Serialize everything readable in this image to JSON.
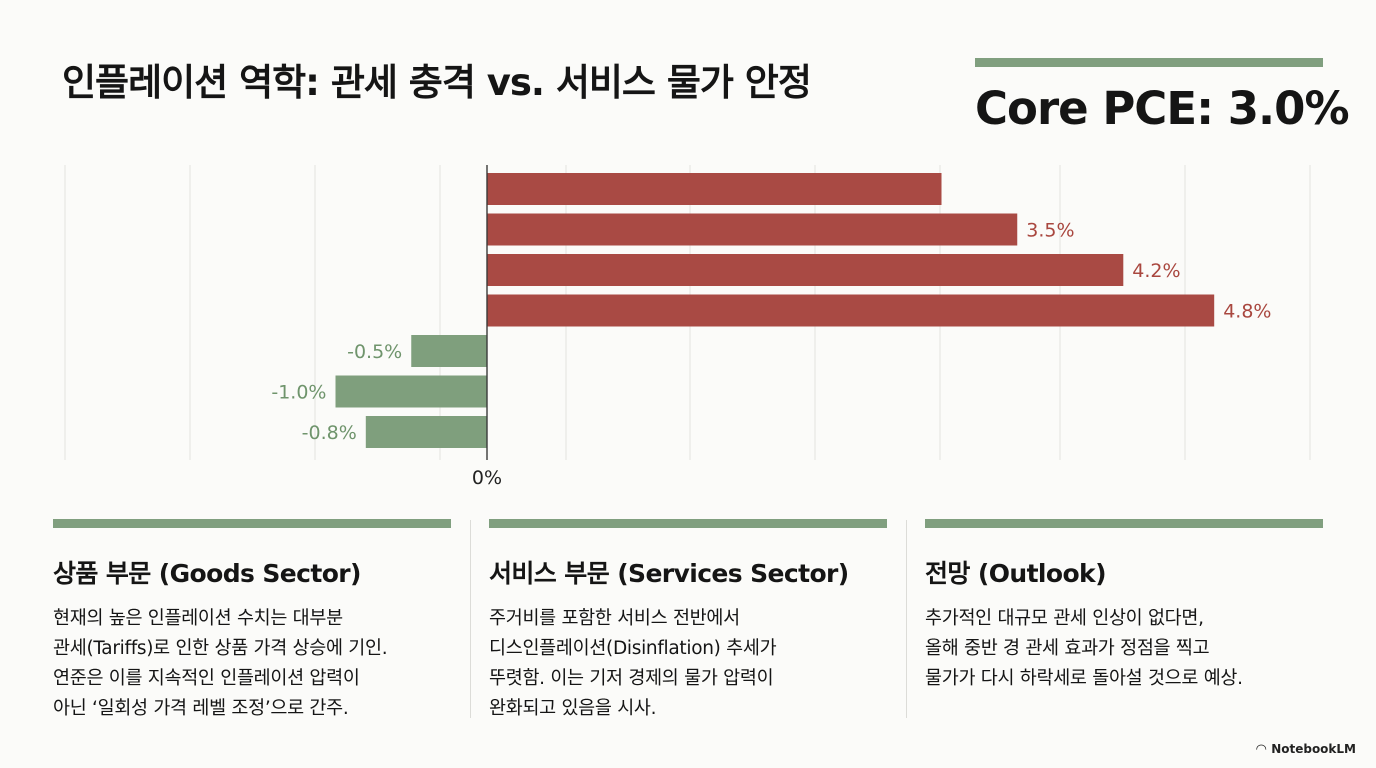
{
  "title": "인플레이션 역학: 관세 충격 vs. 서비스 물가 안정",
  "headline_metric": "Core PCE: 3.0%",
  "chart_data": {
    "type": "bar",
    "orientation": "horizontal",
    "zero_label": "0%",
    "xlim": [
      -1.7,
      6.6
    ],
    "bars": [
      {
        "value": 3.0,
        "label": "",
        "color": "#a94a44"
      },
      {
        "value": 3.5,
        "label": "3.5%",
        "color": "#a94a44"
      },
      {
        "value": 4.2,
        "label": "4.2%",
        "color": "#a94a44"
      },
      {
        "value": 4.8,
        "label": "4.8%",
        "color": "#a94a44"
      },
      {
        "value": -0.5,
        "label": "-0.5%",
        "color": "#7f9f7d"
      },
      {
        "value": -1.0,
        "label": "-1.0%",
        "color": "#7f9f7d"
      },
      {
        "value": -0.8,
        "label": "-0.8%",
        "color": "#7f9f7d"
      }
    ],
    "colors": {
      "positive": "#a94a44",
      "positive_label": "#a9473f",
      "negative": "#7f9f7d",
      "negative_label": "#6f946c",
      "grid": "#e3e3df"
    }
  },
  "columns": [
    {
      "heading": "상품 부문 (Goods Sector)",
      "lines": [
        "현재의 높은 인플레이션 수치는 대부분",
        "관세(Tariffs)로 인한 상품 가격 상승에 기인.",
        "연준은 이를 지속적인 인플레이션 압력이",
        "아닌 ‘일회성 가격 레벨 조정’으로 간주."
      ]
    },
    {
      "heading": "서비스 부문 (Services Sector)",
      "lines": [
        "주거비를 포함한 서비스 전반에서",
        "디스인플레이션(Disinflation) 추세가",
        "뚜렷함. 이는 기저 경제의 물가 압력이",
        "완화되고 있음을 시사."
      ]
    },
    {
      "heading": "전망 (Outlook)",
      "lines": [
        "추가적인 대규모 관세 인상이 없다면,",
        "올해 중반 경 관세 효과가 정점을 찍고",
        "물가가 다시 하락세로 돌아설 것으로 예상."
      ]
    }
  ],
  "brand": {
    "icon": "notebooklm-icon",
    "text": "NotebookLM"
  }
}
